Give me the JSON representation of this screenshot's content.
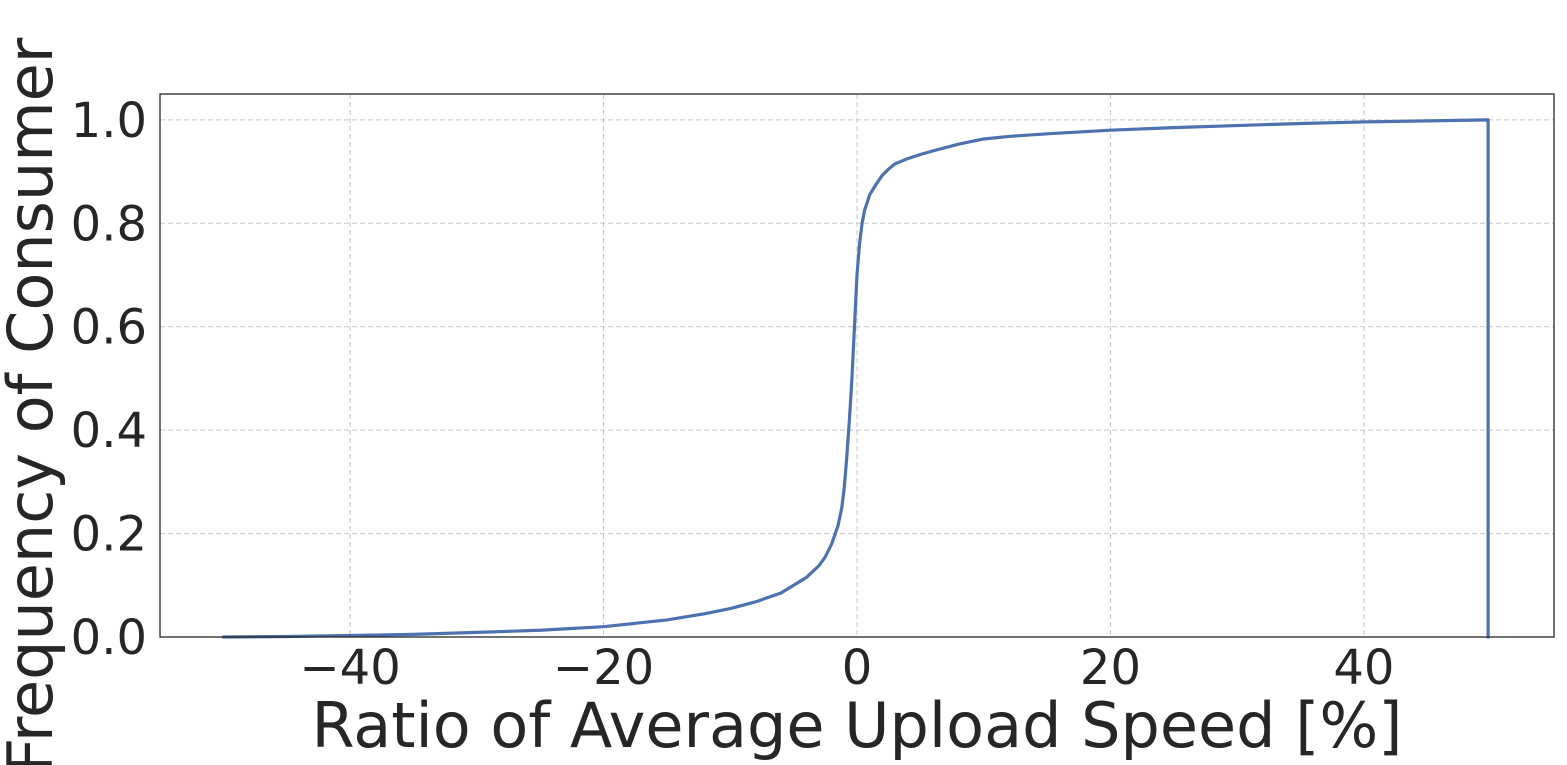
{
  "chart_data": {
    "type": "line",
    "title": "",
    "xlabel": "Ratio of Average Upload Speed [%]",
    "ylabel": "Frequency of Consumer",
    "xlim": [
      -55,
      55
    ],
    "ylim": [
      0,
      1.05
    ],
    "xticks": [
      -40,
      -20,
      0,
      20,
      40
    ],
    "xtick_labels": [
      "−40",
      "−20",
      "0",
      "20",
      "40"
    ],
    "yticks": [
      0.0,
      0.2,
      0.4,
      0.6,
      0.8,
      1.0
    ],
    "ytick_labels": [
      "0.0",
      "0.2",
      "0.4",
      "0.6",
      "0.8",
      "1.0"
    ],
    "grid": true,
    "legend": false,
    "series": [
      {
        "color": "#4c72b0",
        "x": [
          -50,
          -45,
          -40,
          -35,
          -30,
          -25,
          -20,
          -15,
          -12,
          -10,
          -8,
          -6,
          -5,
          -4,
          -3,
          -2.5,
          -2,
          -1.5,
          -1.2,
          -1.0,
          -0.8,
          -0.6,
          -0.4,
          -0.2,
          0.0,
          0.2,
          0.4,
          0.6,
          0.8,
          1.0,
          1.5,
          2.0,
          2.5,
          3,
          4,
          5,
          6,
          8,
          10,
          12,
          15,
          20,
          25,
          30,
          35,
          40,
          45,
          49.8,
          49.8
        ],
        "y": [
          0.0,
          0.001,
          0.003,
          0.005,
          0.009,
          0.013,
          0.02,
          0.033,
          0.045,
          0.055,
          0.068,
          0.085,
          0.1,
          0.115,
          0.138,
          0.155,
          0.18,
          0.215,
          0.25,
          0.29,
          0.35,
          0.42,
          0.5,
          0.6,
          0.7,
          0.76,
          0.8,
          0.825,
          0.84,
          0.855,
          0.875,
          0.893,
          0.905,
          0.915,
          0.925,
          0.933,
          0.94,
          0.953,
          0.963,
          0.968,
          0.973,
          0.98,
          0.985,
          0.989,
          0.993,
          0.996,
          0.998,
          1.0,
          0.0
        ]
      }
    ]
  }
}
